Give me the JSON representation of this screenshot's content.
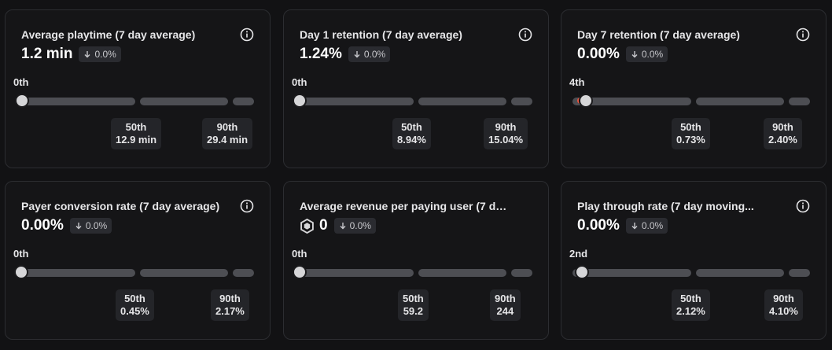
{
  "cards": [
    {
      "title": "Average playtime (7 day average)",
      "value": "1.2 min",
      "change": "0.0%",
      "rank": "0th",
      "p50_label": "50th",
      "p50_value": "12.9 min",
      "p90_label": "90th",
      "p90_value": "29.4 min"
    },
    {
      "title": "Day 1 retention (7 day average)",
      "value": "1.24%",
      "change": "0.0%",
      "rank": "0th",
      "p50_label": "50th",
      "p50_value": "8.94%",
      "p90_label": "90th",
      "p90_value": "15.04%"
    },
    {
      "title": "Day 7 retention (7 day average)",
      "value": "0.00%",
      "change": "0.0%",
      "rank": "4th",
      "p50_label": "50th",
      "p50_value": "0.73%",
      "p90_label": "90th",
      "p90_value": "2.40%"
    },
    {
      "title": "Payer conversion rate (7 day average)",
      "value": "0.00%",
      "change": "0.0%",
      "rank": "0th",
      "p50_label": "50th",
      "p50_value": "0.45%",
      "p90_label": "90th",
      "p90_value": "2.17%"
    },
    {
      "title": "Average revenue per paying user (7 day...",
      "value": "0",
      "change": "0.0%",
      "rank": "0th",
      "p50_label": "50th",
      "p50_value": "59.2",
      "p90_label": "90th",
      "p90_value": "244"
    },
    {
      "title": "Play through rate (7 day moving...",
      "value": "0.00%",
      "change": "0.0%",
      "rank": "2nd",
      "p50_label": "50th",
      "p50_value": "2.12%",
      "p90_label": "90th",
      "p90_value": "4.10%"
    }
  ],
  "icons": {
    "info": "info-icon",
    "change_arrow": "arrow-down-icon",
    "currency": "robux-icon"
  },
  "colors": {
    "background": "#121214",
    "card": "#151517",
    "track": "#4d4e53",
    "knob": "#d6d6d8",
    "badge": "#2a2b30",
    "indicator": "#e2533f"
  }
}
